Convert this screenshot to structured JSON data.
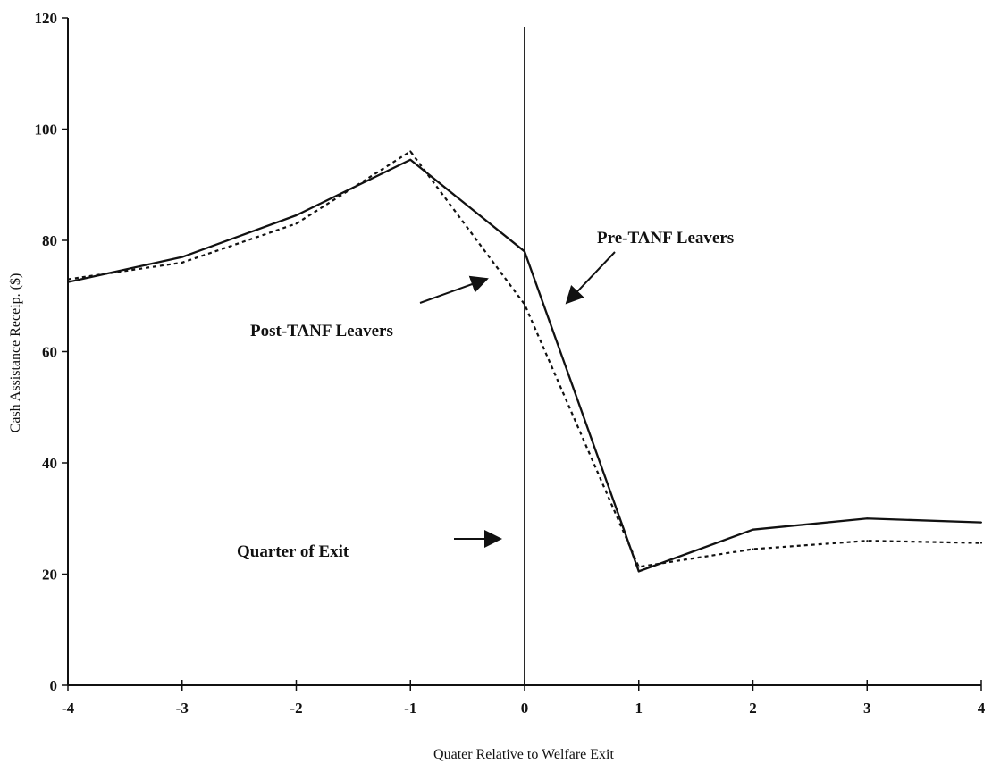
{
  "chart_data": {
    "type": "line",
    "title": "",
    "xlabel": "Quater Relative to Welfare Exit",
    "ylabel": "Cash Assistance Receip. ($)",
    "xlim": [
      -4,
      4
    ],
    "ylim": [
      0,
      120
    ],
    "x_ticks": [
      -4,
      -3,
      -2,
      -1,
      0,
      1,
      2,
      3,
      4
    ],
    "y_ticks": [
      0,
      20,
      40,
      60,
      80,
      100,
      120
    ],
    "grid": false,
    "legend": "none",
    "x": [
      -4,
      -3,
      -2,
      -1,
      0,
      1,
      2,
      3,
      4
    ],
    "series": [
      {
        "name": "Pre-TANF Leavers",
        "style": "solid",
        "color": "#111111",
        "values": [
          72.5,
          77,
          84.5,
          94.5,
          78,
          20.5,
          28,
          30,
          29.3
        ]
      },
      {
        "name": "Post-TANF Leavers",
        "style": "dotted",
        "color": "#111111",
        "values": [
          73,
          76,
          83,
          96,
          68.5,
          21.3,
          24.5,
          26,
          25.6
        ]
      }
    ],
    "reference_lines": [
      {
        "axis": "x",
        "value": 0,
        "label": "Quarter of Exit"
      }
    ],
    "annotations": [
      {
        "text": "Pre-TANF Leavers"
      },
      {
        "text": "Post-TANF Leavers"
      },
      {
        "text": "Quarter of Exit"
      }
    ]
  }
}
